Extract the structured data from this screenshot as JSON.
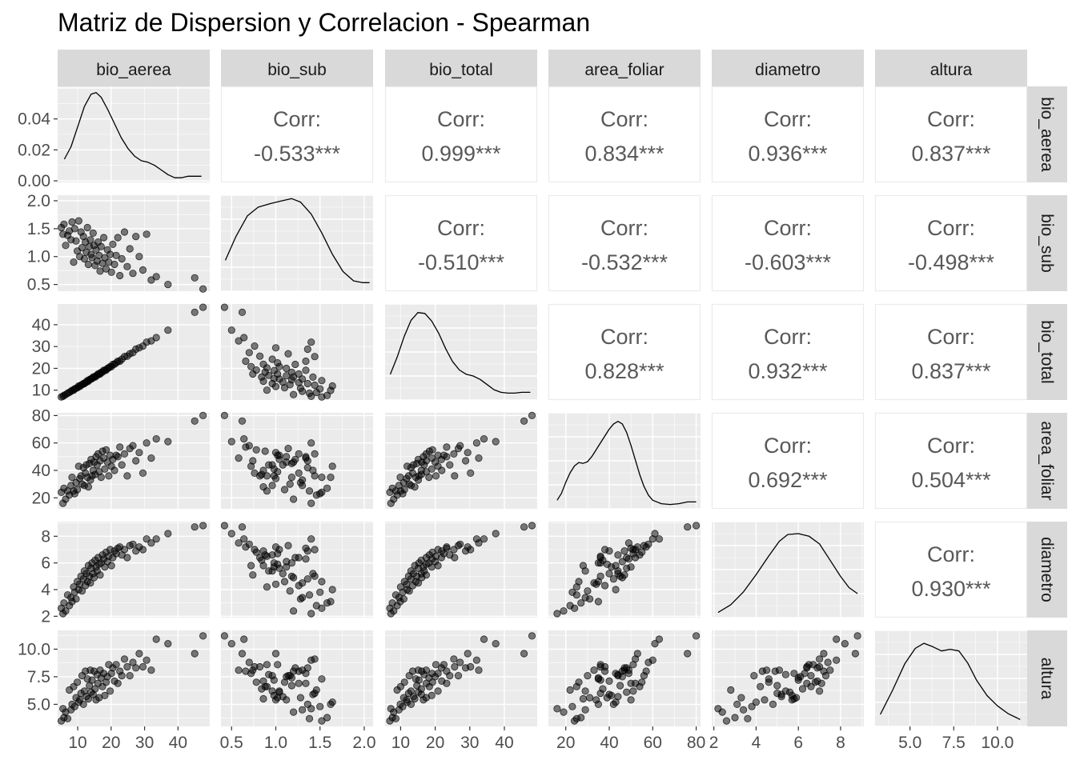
{
  "title": "Matriz de Dispersion y Correlacion - Spearman",
  "chart_data": {
    "type": "scatter-matrix",
    "method": "Spearman",
    "variables": [
      "bio_aerea",
      "bio_sub",
      "bio_total",
      "area_foliar",
      "diametro",
      "altura"
    ],
    "corr_label": "Corr:",
    "correlations": [
      {
        "row": "bio_aerea",
        "col": "bio_sub",
        "text": "-0.533***"
      },
      {
        "row": "bio_aerea",
        "col": "bio_total",
        "text": "0.999***"
      },
      {
        "row": "bio_aerea",
        "col": "area_foliar",
        "text": "0.834***"
      },
      {
        "row": "bio_aerea",
        "col": "diametro",
        "text": "0.936***"
      },
      {
        "row": "bio_aerea",
        "col": "altura",
        "text": "0.837***"
      },
      {
        "row": "bio_sub",
        "col": "bio_total",
        "text": "-0.510***"
      },
      {
        "row": "bio_sub",
        "col": "area_foliar",
        "text": "-0.532***"
      },
      {
        "row": "bio_sub",
        "col": "diametro",
        "text": "-0.603***"
      },
      {
        "row": "bio_sub",
        "col": "altura",
        "text": "-0.498***"
      },
      {
        "row": "bio_total",
        "col": "area_foliar",
        "text": "0.828***"
      },
      {
        "row": "bio_total",
        "col": "diametro",
        "text": "0.932***"
      },
      {
        "row": "bio_total",
        "col": "altura",
        "text": "0.837***"
      },
      {
        "row": "area_foliar",
        "col": "diametro",
        "text": "0.692***"
      },
      {
        "row": "area_foliar",
        "col": "altura",
        "text": "0.504***"
      },
      {
        "row": "diametro",
        "col": "altura",
        "text": "0.930***"
      }
    ],
    "x_ticks": {
      "bio_aerea": [
        "10",
        "20",
        "30",
        "40"
      ],
      "bio_sub": [
        "0.5",
        "1.0",
        "1.5",
        "2.0"
      ],
      "bio_total": [
        "10",
        "20",
        "30",
        "40"
      ],
      "area_foliar": [
        "20",
        "40",
        "60",
        "80"
      ],
      "diametro": [
        "2",
        "4",
        "6",
        "8"
      ],
      "altura": [
        "5.0",
        "7.5",
        "10.0"
      ]
    },
    "y_ticks": {
      "bio_aerea": [
        "0.00",
        "0.02",
        "0.04"
      ],
      "bio_sub": [
        "0.5",
        "1.0",
        "1.5",
        "2.0"
      ],
      "bio_total": [
        "10",
        "20",
        "30",
        "40"
      ],
      "area_foliar": [
        "20",
        "40",
        "60",
        "80"
      ],
      "diametro": [
        "2",
        "4",
        "6",
        "8"
      ],
      "altura": [
        "5.0",
        "7.5",
        "10.0"
      ]
    },
    "ranges": {
      "bio_aerea": [
        4.0,
        49.5
      ],
      "bio_sub": [
        0.38,
        2.1
      ],
      "bio_total": [
        5.5,
        49.5
      ],
      "area_foliar": [
        12,
        82
      ],
      "diametro": [
        1.9,
        9.1
      ],
      "altura": [
        3.0,
        11.7
      ]
    },
    "density_y_range_bio_aerea": [
      -0.001,
      0.061
    ],
    "density_curves": {
      "bio_aerea": [
        [
          6.0,
          0.014
        ],
        [
          8.0,
          0.022
        ],
        [
          10.0,
          0.035
        ],
        [
          12.0,
          0.048
        ],
        [
          14.0,
          0.056
        ],
        [
          15.5,
          0.057
        ],
        [
          17.0,
          0.054
        ],
        [
          19.0,
          0.046
        ],
        [
          21.0,
          0.037
        ],
        [
          23.0,
          0.028
        ],
        [
          25.0,
          0.021
        ],
        [
          27.0,
          0.016
        ],
        [
          29.0,
          0.013
        ],
        [
          31.0,
          0.012
        ],
        [
          33.0,
          0.01
        ],
        [
          35.0,
          0.007
        ],
        [
          37.0,
          0.004
        ],
        [
          39.0,
          0.002
        ],
        [
          41.0,
          0.002
        ],
        [
          43.0,
          0.003
        ],
        [
          45.0,
          0.003
        ],
        [
          47.0,
          0.003
        ]
      ],
      "bio_sub": [
        [
          0.43,
          0.34
        ],
        [
          0.55,
          0.62
        ],
        [
          0.68,
          0.86
        ],
        [
          0.8,
          0.96
        ],
        [
          0.93,
          1.0
        ],
        [
          1.05,
          1.03
        ],
        [
          1.18,
          1.06
        ],
        [
          1.28,
          1.02
        ],
        [
          1.4,
          0.88
        ],
        [
          1.52,
          0.66
        ],
        [
          1.64,
          0.41
        ],
        [
          1.76,
          0.21
        ],
        [
          1.88,
          0.1
        ],
        [
          1.98,
          0.08
        ],
        [
          2.06,
          0.08
        ]
      ],
      "bio_total": [
        [
          7.0,
          0.28
        ],
        [
          9.0,
          0.48
        ],
        [
          11.0,
          0.72
        ],
        [
          13.0,
          0.91
        ],
        [
          15.0,
          1.0
        ],
        [
          17.0,
          0.99
        ],
        [
          19.0,
          0.9
        ],
        [
          21.0,
          0.76
        ],
        [
          23.0,
          0.58
        ],
        [
          25.0,
          0.43
        ],
        [
          27.0,
          0.33
        ],
        [
          29.0,
          0.28
        ],
        [
          31.0,
          0.26
        ],
        [
          33.0,
          0.22
        ],
        [
          35.0,
          0.16
        ],
        [
          37.0,
          0.1
        ],
        [
          39.0,
          0.07
        ],
        [
          41.0,
          0.06
        ],
        [
          43.0,
          0.06
        ],
        [
          45.0,
          0.07
        ],
        [
          47.5,
          0.07
        ]
      ],
      "area_foliar": [
        [
          16,
          0.08
        ],
        [
          18,
          0.16
        ],
        [
          20,
          0.29
        ],
        [
          22,
          0.4
        ],
        [
          24,
          0.48
        ],
        [
          26,
          0.52
        ],
        [
          28,
          0.51
        ],
        [
          30,
          0.53
        ],
        [
          32,
          0.59
        ],
        [
          34,
          0.67
        ],
        [
          36,
          0.75
        ],
        [
          38,
          0.83
        ],
        [
          40,
          0.91
        ],
        [
          42,
          0.97
        ],
        [
          44,
          1.0
        ],
        [
          46,
          0.97
        ],
        [
          48,
          0.87
        ],
        [
          50,
          0.72
        ],
        [
          52,
          0.55
        ],
        [
          54,
          0.38
        ],
        [
          56,
          0.24
        ],
        [
          58,
          0.14
        ],
        [
          60,
          0.08
        ],
        [
          64,
          0.04
        ],
        [
          68,
          0.03
        ],
        [
          72,
          0.04
        ],
        [
          76,
          0.06
        ],
        [
          80,
          0.06
        ]
      ],
      "diametro": [
        [
          2.2,
          0.04
        ],
        [
          2.8,
          0.13
        ],
        [
          3.4,
          0.28
        ],
        [
          4.0,
          0.48
        ],
        [
          4.6,
          0.7
        ],
        [
          5.1,
          0.87
        ],
        [
          5.5,
          0.95
        ],
        [
          6.0,
          0.96
        ],
        [
          6.5,
          0.93
        ],
        [
          7.0,
          0.84
        ],
        [
          7.5,
          0.65
        ],
        [
          8.0,
          0.46
        ],
        [
          8.4,
          0.33
        ],
        [
          8.8,
          0.26
        ]
      ],
      "altura": [
        [
          3.3,
          0.12
        ],
        [
          4.0,
          0.4
        ],
        [
          4.7,
          0.71
        ],
        [
          5.3,
          0.89
        ],
        [
          5.8,
          0.95
        ],
        [
          6.3,
          0.91
        ],
        [
          6.8,
          0.86
        ],
        [
          7.3,
          0.88
        ],
        [
          7.8,
          0.86
        ],
        [
          8.3,
          0.72
        ],
        [
          8.8,
          0.52
        ],
        [
          9.4,
          0.34
        ],
        [
          10.0,
          0.22
        ],
        [
          10.6,
          0.13
        ],
        [
          11.3,
          0.06
        ]
      ]
    },
    "observations": {
      "bio_aerea": [
        5.1,
        5.6,
        5.9,
        6.4,
        7.0,
        7.5,
        8.0,
        8.3,
        8.8,
        9.1,
        9.5,
        9.9,
        10.3,
        10.6,
        11.0,
        11.3,
        11.7,
        12.0,
        12.3,
        12.6,
        12.9,
        13.2,
        13.5,
        13.8,
        14.0,
        14.3,
        14.6,
        14.9,
        15.2,
        15.5,
        15.8,
        16.1,
        16.4,
        16.7,
        17.0,
        17.4,
        17.8,
        18.1,
        18.5,
        18.9,
        19.3,
        19.7,
        20.1,
        20.5,
        21.0,
        21.5,
        22.0,
        22.6,
        23.2,
        24.0,
        24.8,
        25.6,
        26.5,
        27.4,
        28.4,
        29.5,
        30.6,
        32.0,
        33.5,
        37.0,
        45.0,
        47.5
      ],
      "bio_sub": [
        1.52,
        1.4,
        1.58,
        1.2,
        1.38,
        1.46,
        1.3,
        1.62,
        0.9,
        1.5,
        1.28,
        1.1,
        1.64,
        1.0,
        1.44,
        1.16,
        1.36,
        0.96,
        1.26,
        1.08,
        1.52,
        0.86,
        1.18,
        1.3,
        1.04,
        0.98,
        1.42,
        1.2,
        0.84,
        1.12,
        0.92,
        1.26,
        1.02,
        0.74,
        1.18,
        0.88,
        1.34,
        0.98,
        0.78,
        1.12,
        0.9,
        1.04,
        0.72,
        1.22,
        0.86,
        1.02,
        1.34,
        0.66,
        0.96,
        1.44,
        0.82,
        1.14,
        0.7,
        1.36,
        1.0,
        0.76,
        1.4,
        0.58,
        0.64,
        0.5,
        0.62,
        0.42
      ],
      "bio_total": [
        6.9,
        7.2,
        7.6,
        8.0,
        8.6,
        9.0,
        9.5,
        9.9,
        10.0,
        10.6,
        10.9,
        11.1,
        11.9,
        11.7,
        12.3,
        12.5,
        13.0,
        13.0,
        13.5,
        13.7,
        14.4,
        14.1,
        14.7,
        15.1,
        15.1,
        15.3,
        16.0,
        16.1,
        16.0,
        16.6,
        16.8,
        17.4,
        17.4,
        17.4,
        18.2,
        18.3,
        19.1,
        19.0,
        19.2,
        20.0,
        20.2,
        20.8,
        20.8,
        21.8,
        21.9,
        22.5,
        23.3,
        23.3,
        24.2,
        25.4,
        25.6,
        26.7,
        27.2,
        28.8,
        29.4,
        30.2,
        32.0,
        32.6,
        34.1,
        37.5,
        45.7,
        48.0
      ],
      "area_foliar": [
        24,
        16,
        27,
        19,
        25,
        22,
        29,
        35,
        25,
        23,
        31,
        26,
        43,
        34,
        36,
        30,
        42,
        29,
        38,
        44,
        35,
        28,
        45,
        33,
        48,
        36,
        40,
        46,
        37,
        50,
        44,
        52,
        39,
        47,
        35,
        54,
        49,
        41,
        55,
        46,
        36,
        51,
        43,
        48,
        40,
        51,
        50,
        57,
        44,
        52,
        36,
        56,
        58,
        47,
        53,
        38,
        60,
        49,
        63,
        61,
        76,
        80
      ],
      "diametro": [
        2.6,
        2.2,
        3.0,
        2.4,
        3.6,
        2.8,
        3.4,
        3.1,
        4.2,
        3.8,
        3.3,
        4.6,
        4.0,
        4.4,
        5.0,
        3.9,
        4.8,
        5.4,
        4.3,
        5.2,
        4.6,
        5.8,
        5.0,
        4.5,
        5.6,
        6.0,
        5.2,
        4.9,
        6.2,
        5.7,
        5.4,
        6.4,
        5.9,
        5.1,
        6.0,
        6.6,
        6.3,
        5.7,
        6.8,
        6.1,
        6.5,
        7.0,
        5.8,
        6.4,
        6.9,
        6.7,
        7.1,
        7.2,
        6.6,
        7.0,
        6.4,
        7.3,
        7.4,
        6.9,
        7.2,
        7.0,
        7.8,
        7.5,
        7.8,
        8.2,
        8.7,
        8.8
      ],
      "altura": [
        3.5,
        4.6,
        3.8,
        4.3,
        3.7,
        6.3,
        4.5,
        5.0,
        6.6,
        4.8,
        5.6,
        7.0,
        5.2,
        5.4,
        6.0,
        7.6,
        5.0,
        6.2,
        8.0,
        5.7,
        7.3,
        5.5,
        6.7,
        8.1,
        6.1,
        7.2,
        5.9,
        8.0,
        6.4,
        5.4,
        7.7,
        6.9,
        5.6,
        8.1,
        7.4,
        6.6,
        7.8,
        5.8,
        7.0,
        7.5,
        8.6,
        6.2,
        7.8,
        8.3,
        7.1,
        8.6,
        6.9,
        8.0,
        7.6,
        9.1,
        8.4,
        7.6,
        8.8,
        8.3,
        9.6,
        8.4,
        9.0,
        8.1,
        10.9,
        10.5,
        9.6,
        11.2
      ]
    }
  }
}
